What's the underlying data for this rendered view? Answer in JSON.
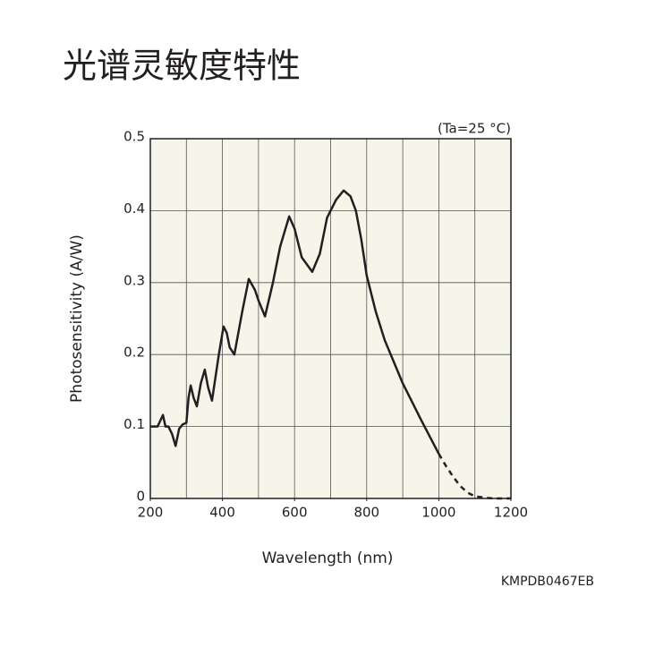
{
  "chart_data": {
    "type": "line",
    "title": "光谱灵敏度特性",
    "annotation": "(Ta=25 °C)",
    "code": "KMPDB0467EB",
    "x_label": "Wavelength (nm)",
    "y_label": "Photosensitivity (A/W)",
    "xlim": [
      200,
      1200
    ],
    "ylim": [
      0,
      0.5
    ],
    "xticks": [
      200,
      400,
      600,
      800,
      1000,
      1200
    ],
    "yticks": [
      0,
      0.1,
      0.2,
      0.3,
      0.4,
      0.5
    ],
    "xgrid": [
      300,
      400,
      500,
      600,
      700,
      800,
      900,
      1000,
      1100
    ],
    "grid": true,
    "series": [
      {
        "color": "#231f20",
        "dashed": false,
        "x": [
          200,
          210,
          220,
          235,
          242,
          250,
          260,
          270,
          280,
          290,
          300,
          306,
          312,
          320,
          329,
          340,
          351,
          360,
          371,
          390,
          403,
          412,
          420,
          433,
          455,
          473,
          490,
          500,
          518,
          540,
          560,
          585,
          600,
          620,
          649,
          670,
          690,
          715,
          736,
          755,
          770,
          785,
          800,
          825,
          850,
          875,
          900,
          950,
          1000
        ],
        "values": [
          0.1,
          0.1,
          0.1,
          0.116,
          0.1,
          0.1,
          0.09,
          0.073,
          0.097,
          0.103,
          0.105,
          0.14,
          0.157,
          0.14,
          0.128,
          0.16,
          0.179,
          0.155,
          0.136,
          0.2,
          0.239,
          0.23,
          0.21,
          0.2,
          0.26,
          0.305,
          0.29,
          0.275,
          0.253,
          0.3,
          0.35,
          0.392,
          0.375,
          0.335,
          0.315,
          0.34,
          0.39,
          0.415,
          0.428,
          0.42,
          0.4,
          0.36,
          0.31,
          0.26,
          0.22,
          0.19,
          0.16,
          0.11,
          0.062
        ]
      },
      {
        "color": "#231f20",
        "dashed": true,
        "x": [
          1000,
          1020,
          1040,
          1060,
          1080,
          1100,
          1130,
          1150,
          1200
        ],
        "values": [
          0.062,
          0.045,
          0.03,
          0.017,
          0.008,
          0.003,
          0.001,
          0,
          0
        ]
      }
    ]
  }
}
